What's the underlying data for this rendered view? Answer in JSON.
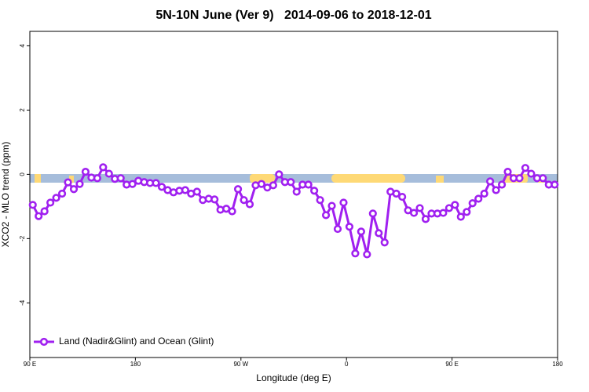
{
  "chart_data": {
    "type": "line",
    "title": "5N-10N June (Ver 9)   2014-09-06 to 2018-12-01",
    "x_label": "Longitude (deg E)",
    "y_label": "XCO2 - MLO trend (ppm)",
    "xlim": [
      90,
      540
    ],
    "ylim": [
      -5.7,
      4.45
    ],
    "xticks": [
      {
        "value": 90,
        "label": "90 E"
      },
      180,
      {
        "value": 270,
        "label": "90 W"
      },
      {
        "value": 360,
        "label": "0"
      },
      {
        "value": 450,
        "label": "90 E"
      },
      {
        "value": 540,
        "label": "180"
      }
    ],
    "yticks": [
      -4,
      -2,
      0,
      2,
      4
    ],
    "legend_position": "bottom-left",
    "x": [
      92.5,
      97.5,
      102.5,
      107.5,
      112.5,
      117.5,
      122.5,
      127.5,
      132.5,
      137.5,
      142.5,
      147.5,
      152.5,
      157.5,
      162.5,
      167.5,
      172.5,
      177.5,
      182.5,
      187.5,
      192.5,
      197.5,
      202.5,
      207.5,
      212.5,
      217.5,
      222.5,
      227.5,
      232.5,
      237.5,
      242.5,
      247.5,
      252.5,
      257.5,
      262.5,
      267.5,
      272.5,
      277.5,
      282.5,
      287.5,
      292.5,
      297.5,
      302.5,
      307.5,
      312.5,
      317.5,
      322.5,
      327.5,
      332.5,
      337.5,
      342.5,
      347.5,
      352.5,
      357.5,
      362.5,
      367.5,
      372.5,
      377.5,
      382.5,
      387.5,
      392.5,
      397.5,
      402.5,
      407.5,
      412.5,
      417.5,
      422.5,
      427.5,
      432.5,
      437.5,
      442.5,
      447.5,
      452.5,
      457.5,
      462.5,
      467.5,
      472.5,
      477.5,
      482.5,
      487.5,
      492.5,
      497.5,
      502.5,
      507.5,
      512.5,
      517.5,
      522.5,
      527.5,
      532.5,
      537.5
    ],
    "series": [
      {
        "name": "Land (Nadir&Glint) and Ocean (Glint)",
        "color": "#a020f0",
        "values": [
          -0.95,
          -1.3,
          -1.15,
          -0.88,
          -0.73,
          -0.6,
          -0.25,
          -0.46,
          -0.3,
          0.08,
          -0.1,
          -0.12,
          0.22,
          0.02,
          -0.14,
          -0.12,
          -0.32,
          -0.3,
          -0.2,
          -0.24,
          -0.27,
          -0.27,
          -0.39,
          -0.49,
          -0.56,
          -0.51,
          -0.49,
          -0.6,
          -0.54,
          -0.8,
          -0.76,
          -0.78,
          -1.1,
          -1.07,
          -1.15,
          -0.46,
          -0.8,
          -0.93,
          -0.34,
          -0.3,
          -0.41,
          -0.34,
          0,
          -0.24,
          -0.24,
          -0.54,
          -0.32,
          -0.32,
          -0.51,
          -0.8,
          -1.27,
          -0.98,
          -1.7,
          -0.88,
          -1.63,
          -2.46,
          -1.78,
          -2.49,
          -1.22,
          -1.83,
          -2.12,
          -0.54,
          -0.6,
          -0.7,
          -1.12,
          -1.2,
          -1.05,
          -1.39,
          -1.22,
          -1.22,
          -1.2,
          -1.05,
          -0.95,
          -1.32,
          -1.17,
          -0.9,
          -0.76,
          -0.6,
          -0.22,
          -0.49,
          -0.32,
          0.08,
          -0.12,
          -0.12,
          0.2,
          0.02,
          -0.12,
          -0.12,
          -0.32,
          -0.32
        ]
      }
    ]
  }
}
